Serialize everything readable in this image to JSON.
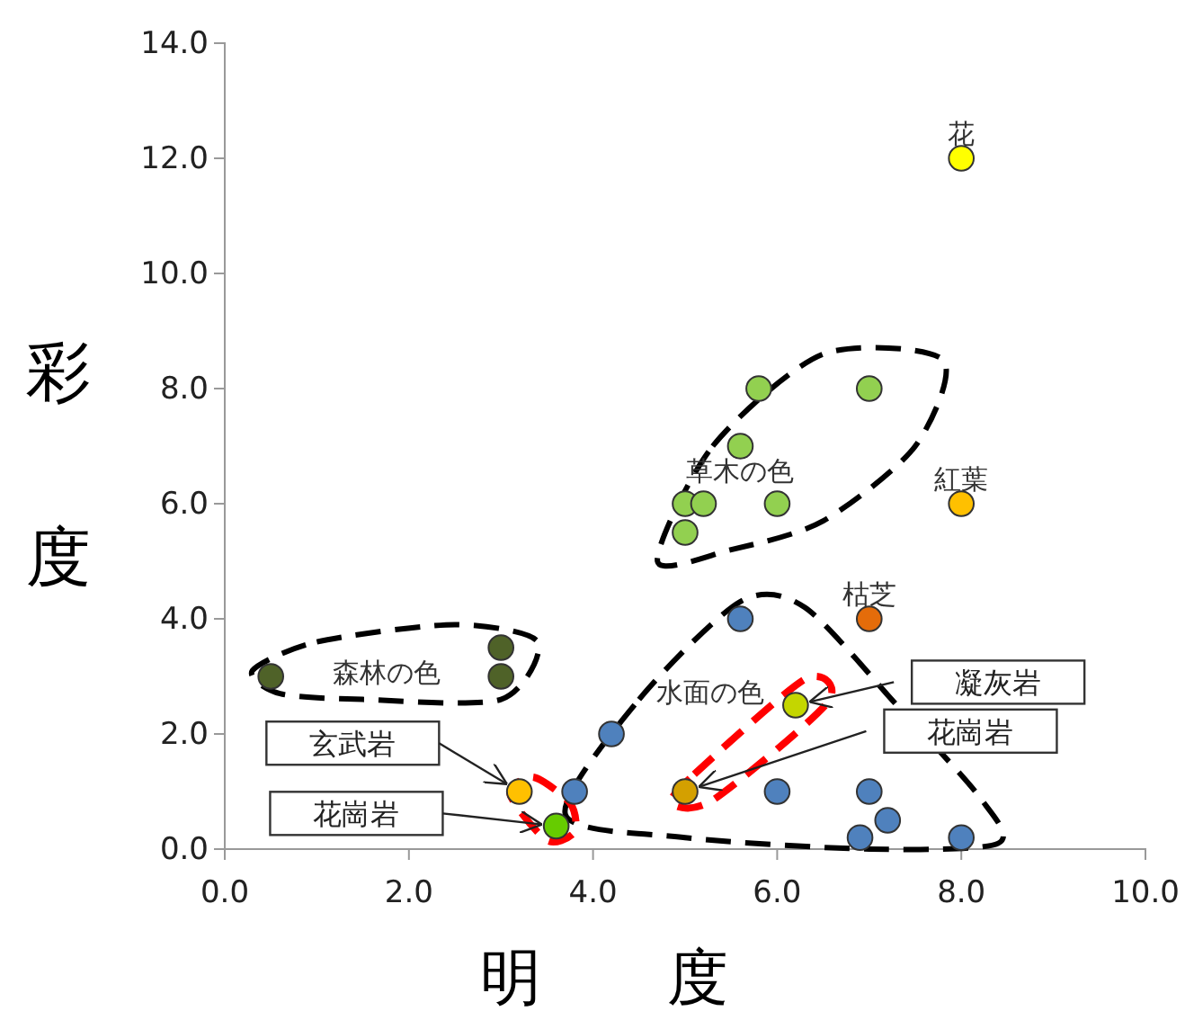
{
  "chart_data": {
    "type": "scatter",
    "xlabel": "明度",
    "ylabel": "彩度",
    "xlim": [
      0,
      10
    ],
    "ylim": [
      0,
      14
    ],
    "xticks": [
      {
        "value": 0,
        "label": "0.0"
      },
      {
        "value": 2,
        "label": "2.0"
      },
      {
        "value": 4,
        "label": "4.0"
      },
      {
        "value": 6,
        "label": "6.0"
      },
      {
        "value": 8,
        "label": "8.0"
      },
      {
        "value": 10,
        "label": "10.0"
      }
    ],
    "yticks": [
      {
        "value": 0,
        "label": "0.0"
      },
      {
        "value": 2,
        "label": "2.0"
      },
      {
        "value": 4,
        "label": "4.0"
      },
      {
        "value": 6,
        "label": "6.0"
      },
      {
        "value": 8,
        "label": "8.0"
      },
      {
        "value": 10,
        "label": "10.0"
      },
      {
        "value": 12,
        "label": "12.0"
      },
      {
        "value": 14,
        "label": "14.0"
      }
    ],
    "grid": false,
    "marker": "circle",
    "series": [
      {
        "color": "#4f6228",
        "x": [
          0.5,
          3.0,
          3.0
        ],
        "values": [
          3.0,
          3.5,
          3.0
        ]
      },
      {
        "color": "#92d050",
        "x": [
          5.8,
          7.0,
          5.6,
          5.0,
          5.2,
          6.0,
          5.0
        ],
        "values": [
          8.0,
          8.0,
          7.0,
          6.0,
          6.0,
          6.0,
          5.5
        ]
      },
      {
        "color": "#4f81bd",
        "x": [
          5.6,
          4.2,
          3.8,
          6.0,
          7.0,
          7.2,
          6.9,
          8.0
        ],
        "values": [
          4.0,
          2.0,
          1.0,
          1.0,
          1.0,
          0.5,
          0.2,
          0.2
        ]
      },
      {
        "color": "#ffff00",
        "x": [
          8.0
        ],
        "values": [
          12.0
        ]
      },
      {
        "color": "#ffc000",
        "x": [
          8.0,
          3.2
        ],
        "values": [
          6.0,
          1.0
        ]
      },
      {
        "color": "#e46c0a",
        "x": [
          7.0
        ],
        "values": [
          4.0
        ]
      },
      {
        "color": "#66cc00",
        "x": [
          3.6
        ],
        "values": [
          0.4
        ]
      },
      {
        "color": "#c4d600",
        "x": [
          6.2
        ],
        "values": [
          2.5
        ]
      },
      {
        "color": "#d4a000",
        "x": [
          5.0
        ],
        "values": [
          1.0
        ]
      }
    ],
    "annotations": [
      "花",
      "紅葉",
      "枯芝",
      "草木の色",
      "森林の色",
      "水面の色",
      "玄武岩",
      "花崗岩",
      "凝灰岩",
      "花崗岩"
    ]
  }
}
